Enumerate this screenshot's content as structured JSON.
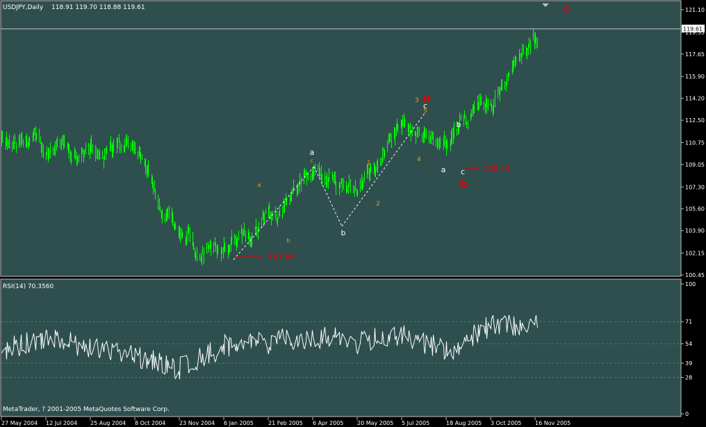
{
  "chart_data": [
    {
      "type": "ohlc",
      "symbol": "USDJPY,Daily",
      "ohlc_header": "118.91 119.70 118.88 119.61",
      "current_price": "119.61",
      "y_ticks": [
        "121.10",
        "119.35",
        "117.65",
        "115.90",
        "114.20",
        "112.50",
        "110.75",
        "109.05",
        "107.30",
        "105.60",
        "103.90",
        "102.15",
        "100.45"
      ],
      "ylim": [
        100.45,
        121.1
      ],
      "x_ticks": [
        "27 May 2004",
        "12 Jul 2004",
        "25 Aug 2004",
        "8 Oct 2004",
        "23 Nov 2004",
        "6 Jan 2005",
        "21 Feb 2005",
        "6 Apr 2005",
        "20 May 2005",
        "5 Jul 2005",
        "18 Aug 2005",
        "3 Oct 2005",
        "16 Nov 2005"
      ],
      "key_points": [
        {
          "date": "27 May 2004",
          "value": 111.0
        },
        {
          "date": "12 Jul 2004",
          "value": 110.5
        },
        {
          "date": "25 Aug 2004",
          "value": 109.7
        },
        {
          "date": "8 Oct 2004",
          "value": 110.5
        },
        {
          "date": "23 Nov 2004",
          "value": 103.0
        },
        {
          "date": "6 Jan 2005",
          "value": 102.5
        },
        {
          "date": "21 Feb 2005",
          "value": 104.8
        },
        {
          "date": "6 Apr 2005",
          "value": 108.5
        },
        {
          "date": "20 May 2005",
          "value": 107.3
        },
        {
          "date": "5 Jul 2005",
          "value": 112.0
        },
        {
          "date": "18 Aug 2005",
          "value": 110.5
        },
        {
          "date": "3 Oct 2005",
          "value": 113.8
        },
        {
          "date": "16 Nov 2005",
          "value": 119.0
        }
      ],
      "price_levels": [
        {
          "label": "101.86",
          "value": 101.86
        },
        {
          "label": "108.74",
          "value": 108.74
        }
      ],
      "wave_labels": {
        "main": [
          "a",
          "b",
          "c"
        ],
        "sub_white": [
          "a",
          "b",
          "c",
          "c",
          "b",
          "a",
          "c"
        ],
        "sub_orange": [
          "a",
          "b",
          "c",
          "1",
          "2",
          "3",
          "4",
          "5"
        ]
      },
      "colors": {
        "background": "#2f4f4f",
        "bars": "#00ff00",
        "labels_main": "#dd0000",
        "labels_sub": "#ff9900",
        "grid": "#c0c0c0"
      }
    },
    {
      "type": "line",
      "label": "RSI(14) 70.3560",
      "y_ticks": [
        "100",
        "71",
        "54",
        "39",
        "28",
        "0"
      ],
      "levels": [
        71,
        54,
        39,
        28
      ],
      "ylim": [
        0,
        100
      ],
      "key_points": [
        {
          "date": "27 May 2004",
          "value": 48
        },
        {
          "date": "12 Jul 2004",
          "value": 60
        },
        {
          "date": "25 Aug 2004",
          "value": 50
        },
        {
          "date": "8 Oct 2004",
          "value": 45
        },
        {
          "date": "23 Nov 2004",
          "value": 35
        },
        {
          "date": "6 Jan 2005",
          "value": 52
        },
        {
          "date": "21 Feb 2005",
          "value": 55
        },
        {
          "date": "6 Apr 2005",
          "value": 60
        },
        {
          "date": "20 May 2005",
          "value": 55
        },
        {
          "date": "5 Jul 2005",
          "value": 62
        },
        {
          "date": "18 Aug 2005",
          "value": 48
        },
        {
          "date": "3 Oct 2005",
          "value": 68
        },
        {
          "date": "16 Nov 2005",
          "value": 70
        }
      ]
    }
  ],
  "footer": "MetaTrader, ? 2001-2005 MetaQuotes Software Corp."
}
